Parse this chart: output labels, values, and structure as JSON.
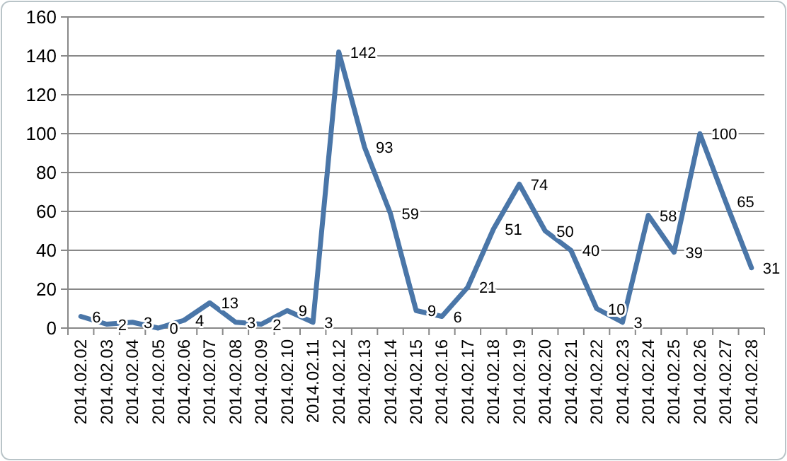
{
  "chart_data": {
    "type": "line",
    "categories": [
      "2014.02.02",
      "2014.02.03",
      "2014.02.04",
      "2014.02.05",
      "2014.02.06",
      "2014.02.07",
      "2014.02.08",
      "2014.02.09",
      "2014.02.10",
      "2014.02.11",
      "2014.02.12",
      "2014.02.13",
      "2014.02.14",
      "2014.02.15",
      "2014.02.16",
      "2014.02.17",
      "2014.02.18",
      "2014.02.19",
      "2014.02.20",
      "2014.02.21",
      "2014.02.22",
      "2014.02.23",
      "2014.02.24",
      "2014.02.25",
      "2014.02.26",
      "2014.02.27",
      "2014.02.28"
    ],
    "series": [
      {
        "color": "#4a76a8",
        "values": [
          6,
          2,
          3,
          0,
          4,
          13,
          3,
          2,
          9,
          3,
          142,
          93,
          59,
          9,
          6,
          21,
          51,
          74,
          50,
          40,
          10,
          3,
          58,
          39,
          100,
          65,
          31
        ]
      }
    ],
    "ylim": [
      0,
      160
    ],
    "yticks": [
      0,
      20,
      40,
      60,
      80,
      100,
      120,
      140,
      160
    ],
    "grid": "y",
    "data_labels": true,
    "marker": "none",
    "line_style": "solid"
  }
}
